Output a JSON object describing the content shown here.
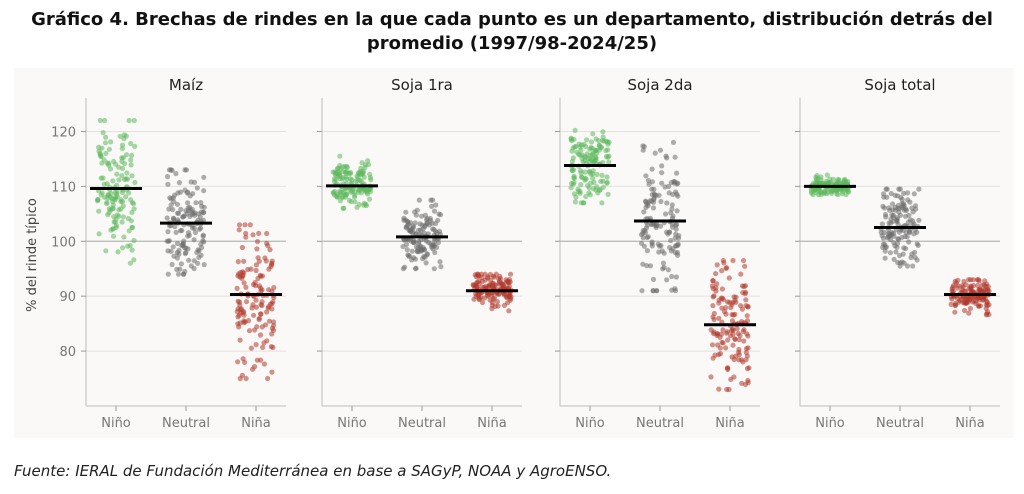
{
  "title_line1": "Gráfico 4. Brechas de rindes en la que cada punto es un departamento, distribución detrás del",
  "title_line2": "promedio (1997/98-2024/25)",
  "source": "Fuente: IERAL de Fundación Mediterránea en base a SAGyP, NOAA y AgroENSO.",
  "colors": {
    "nino": "#5cb85c",
    "neutral": "#6e6e6e",
    "nina": "#b03a2e",
    "mean": "#000000"
  },
  "chart_data": {
    "type": "scatter",
    "ylabel": "% del rinde típico",
    "ylim": [
      70,
      125
    ],
    "yticks": [
      80,
      90,
      100,
      110,
      120
    ],
    "categories": [
      "Niño",
      "Neutral",
      "Niña"
    ],
    "grid": true,
    "panels": [
      {
        "title": "Maíz",
        "series": [
          {
            "name": "Niño",
            "mean": 109.6,
            "min": 96,
            "max": 122
          },
          {
            "name": "Neutral",
            "mean": 103.3,
            "min": 94,
            "max": 113
          },
          {
            "name": "Niña",
            "mean": 90.3,
            "min": 75,
            "max": 103
          }
        ]
      },
      {
        "title": "Soja 1ra",
        "series": [
          {
            "name": "Niño",
            "mean": 110.1,
            "min": 106,
            "max": 115.5
          },
          {
            "name": "Neutral",
            "mean": 100.8,
            "min": 95,
            "max": 107.5
          },
          {
            "name": "Niña",
            "mean": 91.0,
            "min": 81,
            "max": 94
          }
        ]
      },
      {
        "title": "Soja 2da",
        "series": [
          {
            "name": "Niño",
            "mean": 113.8,
            "min": 107,
            "max": 122
          },
          {
            "name": "Neutral",
            "mean": 103.7,
            "min": 91,
            "max": 118
          },
          {
            "name": "Niña",
            "mean": 84.8,
            "min": 73,
            "max": 96.5
          }
        ]
      },
      {
        "title": "Soja total",
        "series": [
          {
            "name": "Niño",
            "mean": 110.0,
            "min": 108.5,
            "max": 114.5
          },
          {
            "name": "Neutral",
            "mean": 102.5,
            "min": 95.5,
            "max": 109.5
          },
          {
            "name": "Niña",
            "mean": 90.3,
            "min": 84,
            "max": 93
          }
        ]
      }
    ]
  }
}
